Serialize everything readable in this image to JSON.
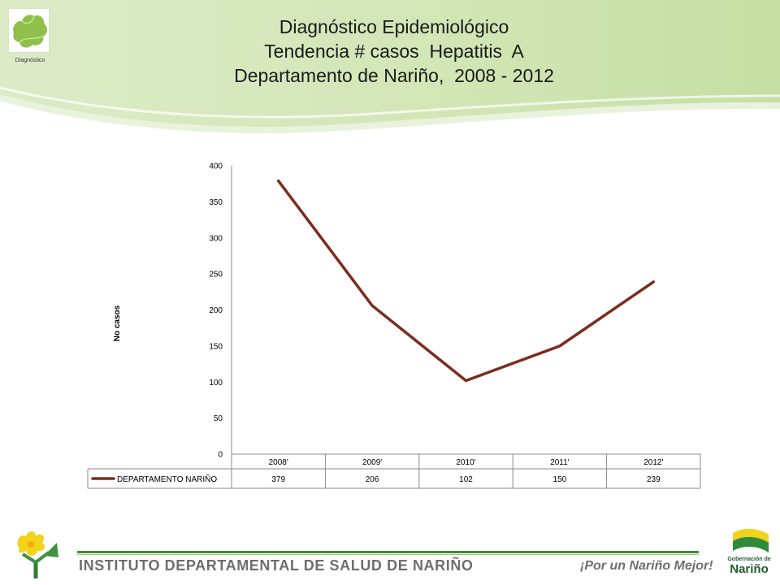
{
  "header": {
    "logo_caption": "Diagnóstico",
    "title_lines": [
      "Diagnóstico Epidemiológico",
      "Tendencia # casos  Hepatitis  A",
      "Departamento de Nariño,  2008 - 2012"
    ]
  },
  "footer": {
    "institute": "INSTITUTO DEPARTAMENTAL DE SALUD DE NARIÑO",
    "slogan": "¡Por un Nariño Mejor!",
    "gov_line1": "Gobernación de",
    "gov_line2": "Nariño"
  },
  "colors": {
    "series": "#7b2d1e",
    "header_green": "#cfe3b0",
    "footer_green": "#3d8b3d"
  },
  "icons": {
    "header_logo": "narino-map-icon",
    "left_logo": "flower-logo-icon",
    "right_logo": "gobernacion-flag-icon"
  },
  "chart_data": {
    "type": "line",
    "title": "",
    "xlabel": "",
    "ylabel": "No casos",
    "categories": [
      "2008'",
      "2009'",
      "2010'",
      "2011'",
      "2012'"
    ],
    "series": [
      {
        "name": "DEPARTAMENTO NARIÑO",
        "values": [
          379,
          206,
          102,
          150,
          239
        ]
      }
    ],
    "ylim": [
      0,
      400
    ],
    "yticks": [
      0,
      50,
      100,
      150,
      200,
      250,
      300,
      350,
      400
    ],
    "grid": false,
    "legend": "data-table-left",
    "data_table": true
  }
}
